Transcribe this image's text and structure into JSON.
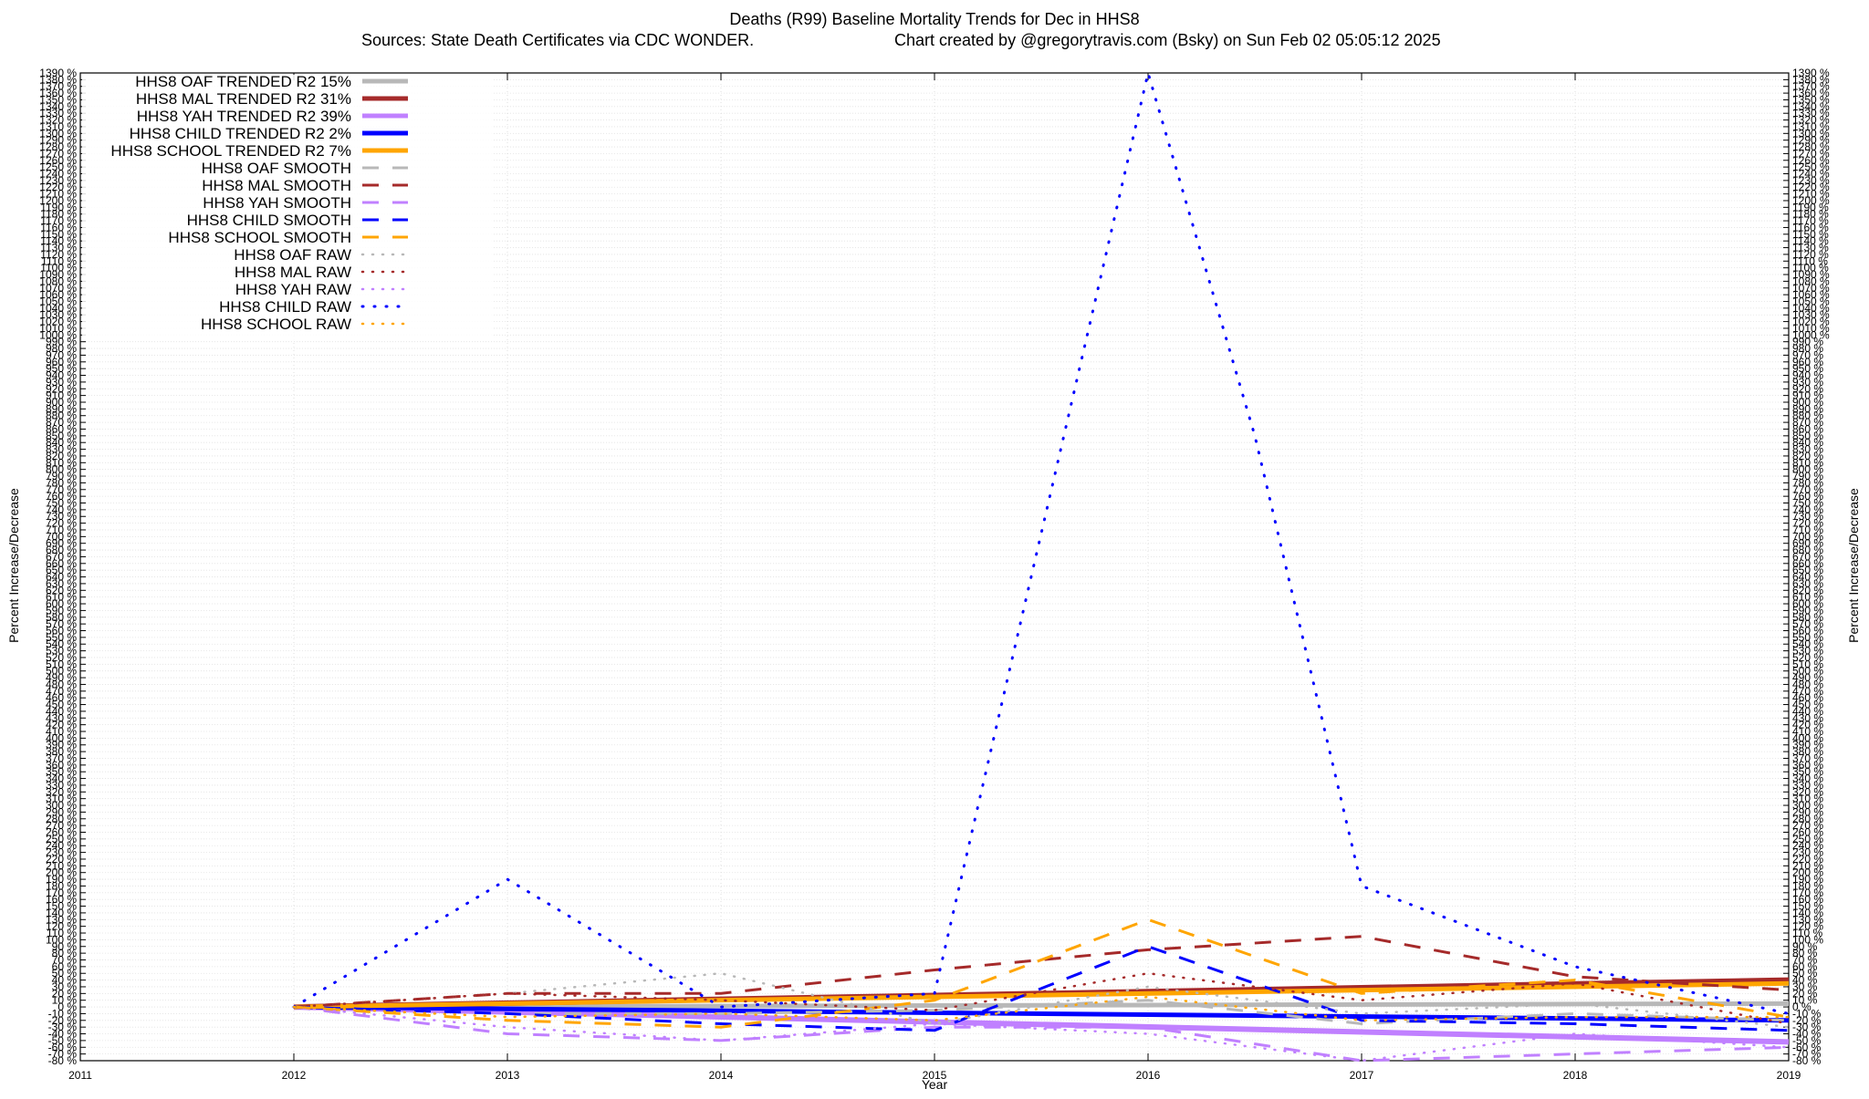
{
  "chart_data": {
    "type": "line",
    "title": "Deaths (R99)  Baseline Mortality Trends for Dec in HHS8",
    "subtitle_left": "Sources: State Death Certificates via CDC WONDER.",
    "subtitle_right": "Chart created by @gregorytravis.com (Bsky) on Sun Feb 02 05:05:12 2025",
    "xlabel": "Year",
    "ylabel": "Percent Increase/Decrease",
    "y2label": "Percent Increase/Decrease",
    "xlim": [
      2011,
      2019
    ],
    "ylim": [
      -80,
      1390
    ],
    "ytick_step": 10,
    "ytick_suffix": " %",
    "x_ticks": [
      "2011",
      "2012",
      "2013",
      "2014",
      "2015",
      "2016",
      "2017",
      "2018",
      "2019"
    ],
    "grid": true,
    "legend_position": "top-left",
    "series": [
      {
        "name": "HHS8 OAF TRENDED R2  15%",
        "color": "#b8b8b8",
        "style": "solid",
        "width": 5,
        "x": [
          2012,
          2019
        ],
        "y": [
          0,
          5
        ]
      },
      {
        "name": "HHS8 MAL TRENDED R2  31%",
        "color": "#a52a2a",
        "style": "solid",
        "width": 6,
        "x": [
          2012,
          2019
        ],
        "y": [
          0,
          40
        ]
      },
      {
        "name": "HHS8 YAH TRENDED R2  39%",
        "color": "#c080ff",
        "style": "solid",
        "width": 6,
        "x": [
          2012,
          2019
        ],
        "y": [
          0,
          -52
        ]
      },
      {
        "name": "HHS8 CHILD TRENDED R2   2%",
        "color": "#0000ff",
        "style": "solid",
        "width": 5,
        "x": [
          2012,
          2019
        ],
        "y": [
          0,
          -20
        ]
      },
      {
        "name": "HHS8 SCHOOL TRENDED R2   7%",
        "color": "#ffa500",
        "style": "solid",
        "width": 5,
        "x": [
          2012,
          2019
        ],
        "y": [
          0,
          35
        ]
      },
      {
        "name": "HHS8 OAF SMOOTH",
        "color": "#b8b8b8",
        "style": "dashed",
        "width": 3,
        "x": [
          2012,
          2013,
          2014,
          2015,
          2016,
          2017,
          2018,
          2019
        ],
        "y": [
          0,
          -10,
          -10,
          -5,
          10,
          -25,
          -10,
          -20
        ]
      },
      {
        "name": "HHS8 MAL SMOOTH",
        "color": "#a52a2a",
        "style": "dashed",
        "width": 3,
        "x": [
          2012,
          2013,
          2014,
          2015,
          2016,
          2017,
          2018,
          2019
        ],
        "y": [
          0,
          20,
          20,
          55,
          85,
          105,
          45,
          25
        ]
      },
      {
        "name": "HHS8 YAH SMOOTH",
        "color": "#c080ff",
        "style": "dashed",
        "width": 3,
        "x": [
          2012,
          2013,
          2014,
          2015,
          2016,
          2017,
          2018,
          2019
        ],
        "y": [
          0,
          -40,
          -50,
          -30,
          -30,
          -80,
          -70,
          -60
        ]
      },
      {
        "name": "HHS8 CHILD SMOOTH",
        "color": "#0000ff",
        "style": "dashed",
        "width": 3,
        "x": [
          2012,
          2013,
          2014,
          2015,
          2016,
          2017,
          2018,
          2019
        ],
        "y": [
          0,
          -10,
          -25,
          -35,
          90,
          -20,
          -25,
          -35
        ]
      },
      {
        "name": "HHS8 SCHOOL SMOOTH",
        "color": "#ffa500",
        "style": "dashed",
        "width": 3,
        "x": [
          2012,
          2013,
          2014,
          2015,
          2016,
          2017,
          2018,
          2019
        ],
        "y": [
          0,
          -20,
          -30,
          10,
          130,
          20,
          40,
          -15
        ]
      },
      {
        "name": "HHS8 OAF RAW",
        "color": "#b8b8b8",
        "style": "dotted",
        "width": 2.5,
        "x": [
          2012,
          2013,
          2014,
          2015,
          2016,
          2017,
          2018,
          2019
        ],
        "y": [
          0,
          20,
          50,
          -25,
          30,
          -10,
          5,
          -30
        ]
      },
      {
        "name": "HHS8 MAL RAW",
        "color": "#a52a2a",
        "style": "dotted",
        "width": 2.5,
        "x": [
          2012,
          2013,
          2014,
          2015,
          2016,
          2017,
          2018,
          2019
        ],
        "y": [
          0,
          20,
          10,
          -5,
          50,
          10,
          35,
          -25
        ]
      },
      {
        "name": "HHS8 YAH RAW",
        "color": "#c080ff",
        "style": "dotted",
        "width": 2.5,
        "x": [
          2012,
          2013,
          2014,
          2015,
          2016,
          2017,
          2018,
          2019
        ],
        "y": [
          0,
          -30,
          -50,
          -25,
          -40,
          -80,
          -40,
          -60
        ]
      },
      {
        "name": "HHS8 CHILD RAW",
        "color": "#0000ff",
        "style": "dotted",
        "width": 3,
        "x": [
          2012,
          2013,
          2014,
          2015,
          2016,
          2016.5,
          2017,
          2018,
          2019
        ],
        "y": [
          0,
          190,
          0,
          20,
          1390,
          850,
          180,
          60,
          -10
        ]
      },
      {
        "name": "HHS8 SCHOOL RAW",
        "color": "#ffa500",
        "style": "dotted",
        "width": 2.5,
        "x": [
          2012,
          2013,
          2014,
          2015,
          2016,
          2017,
          2018,
          2019
        ],
        "y": [
          0,
          -15,
          -10,
          -20,
          15,
          -20,
          -15,
          -15
        ]
      }
    ]
  }
}
